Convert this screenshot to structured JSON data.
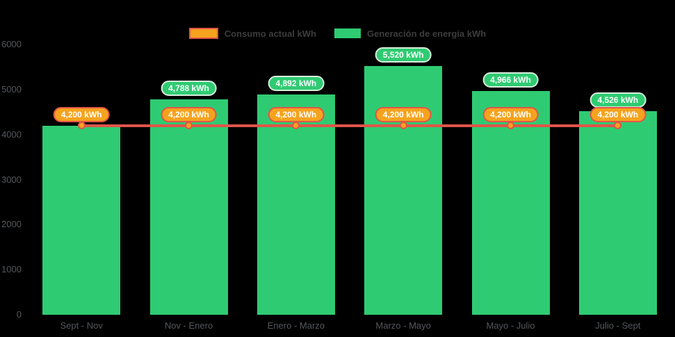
{
  "colors": {
    "background": "#000000",
    "bar_green": "#2fcb72",
    "line_red": "#e0544a",
    "badge_orange": "#f5a31e",
    "badge_green_border": "#d8eedd",
    "axis_text": "#55585c",
    "legend_text": "#3d3d3d",
    "badge_text": "#ffffff"
  },
  "chart_data": {
    "type": "bar",
    "title": "",
    "categories": [
      "Sept - Nov",
      "Nov - Enero",
      "Enero - Marzo",
      "Marzo - Mayo",
      "Mayo - Julio",
      "Julio - Sept"
    ],
    "series": [
      {
        "name": "Consumo actual kWh",
        "type": "line",
        "color": "#e0544a",
        "values": [
          4200,
          4200,
          4200,
          4200,
          4200,
          4200
        ]
      },
      {
        "name": "Generación de energía kWh",
        "type": "bar",
        "color": "#2fcb72",
        "values": [
          4200,
          4788,
          4892,
          5520,
          4966,
          4526
        ]
      }
    ],
    "line_point_labels": [
      "4,200 kWh",
      "4,200 kWh",
      "4,200 kWh",
      "4,200 kWh",
      "4,200 kWh",
      "4,200 kWh"
    ],
    "bar_value_labels": [
      null,
      "4,788 kWh",
      "4,892 kWh",
      "5,520 kWh",
      "4,966 kWh",
      "4,526 kWh"
    ],
    "xlabel": "",
    "ylabel": "",
    "ylim": [
      0,
      6000
    ],
    "yticks": [
      0,
      1000,
      2000,
      3000,
      4000,
      5000,
      6000
    ],
    "grid": false,
    "legend_position": "top"
  }
}
